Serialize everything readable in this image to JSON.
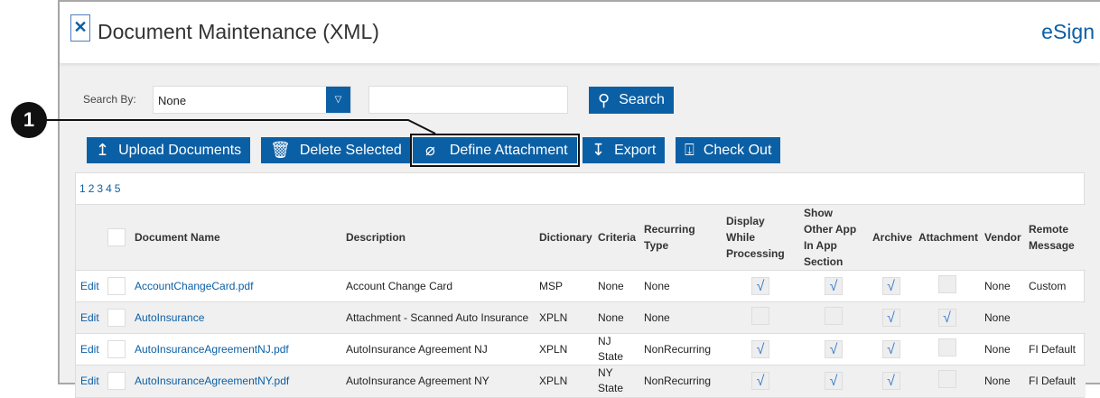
{
  "header": {
    "title": "Document Maintenance (XML)",
    "brand": "eSign"
  },
  "search": {
    "label": "Search By:",
    "selected": "None",
    "value": "",
    "button": "Search"
  },
  "toolbar": {
    "upload": "Upload Documents",
    "delete": "Delete Selected",
    "define": "Define Attachment",
    "export": "Export",
    "checkout": "Check Out"
  },
  "callout": "1",
  "pages": [
    "1",
    "2",
    "3",
    "4",
    "5"
  ],
  "columns": [
    "Document Name",
    "Description",
    "Dictionary",
    "Criteria",
    "Recurring Type",
    "Display While Processing",
    "Show Other App In App Section",
    "Archive",
    "Attachment",
    "Vendor",
    "Remote Message"
  ],
  "edit_label": "Edit",
  "rows": [
    {
      "name": "AccountChangeCard.pdf",
      "desc": "Account Change Card",
      "dict": "MSP",
      "criteria": "None",
      "recurring": "None",
      "display": true,
      "show": true,
      "archive": true,
      "attach": false,
      "vendor": "None",
      "remote": "Custom"
    },
    {
      "name": "AutoInsurance",
      "desc": "Attachment - Scanned Auto Insurance",
      "dict": "XPLN",
      "criteria": "None",
      "recurring": "None",
      "display": false,
      "show": false,
      "archive": true,
      "attach": true,
      "vendor": "None",
      "remote": ""
    },
    {
      "name": "AutoInsuranceAgreementNJ.pdf",
      "desc": "AutoInsurance Agreement NJ",
      "dict": "XPLN",
      "criteria": "NJ State",
      "recurring": "NonRecurring",
      "display": true,
      "show": true,
      "archive": true,
      "attach": false,
      "vendor": "None",
      "remote": "FI Default"
    },
    {
      "name": "AutoInsuranceAgreementNY.pdf",
      "desc": "AutoInsurance Agreement NY",
      "dict": "XPLN",
      "criteria": "NY State",
      "recurring": "NonRecurring",
      "display": true,
      "show": true,
      "archive": true,
      "attach": false,
      "vendor": "None",
      "remote": "FI Default"
    }
  ]
}
